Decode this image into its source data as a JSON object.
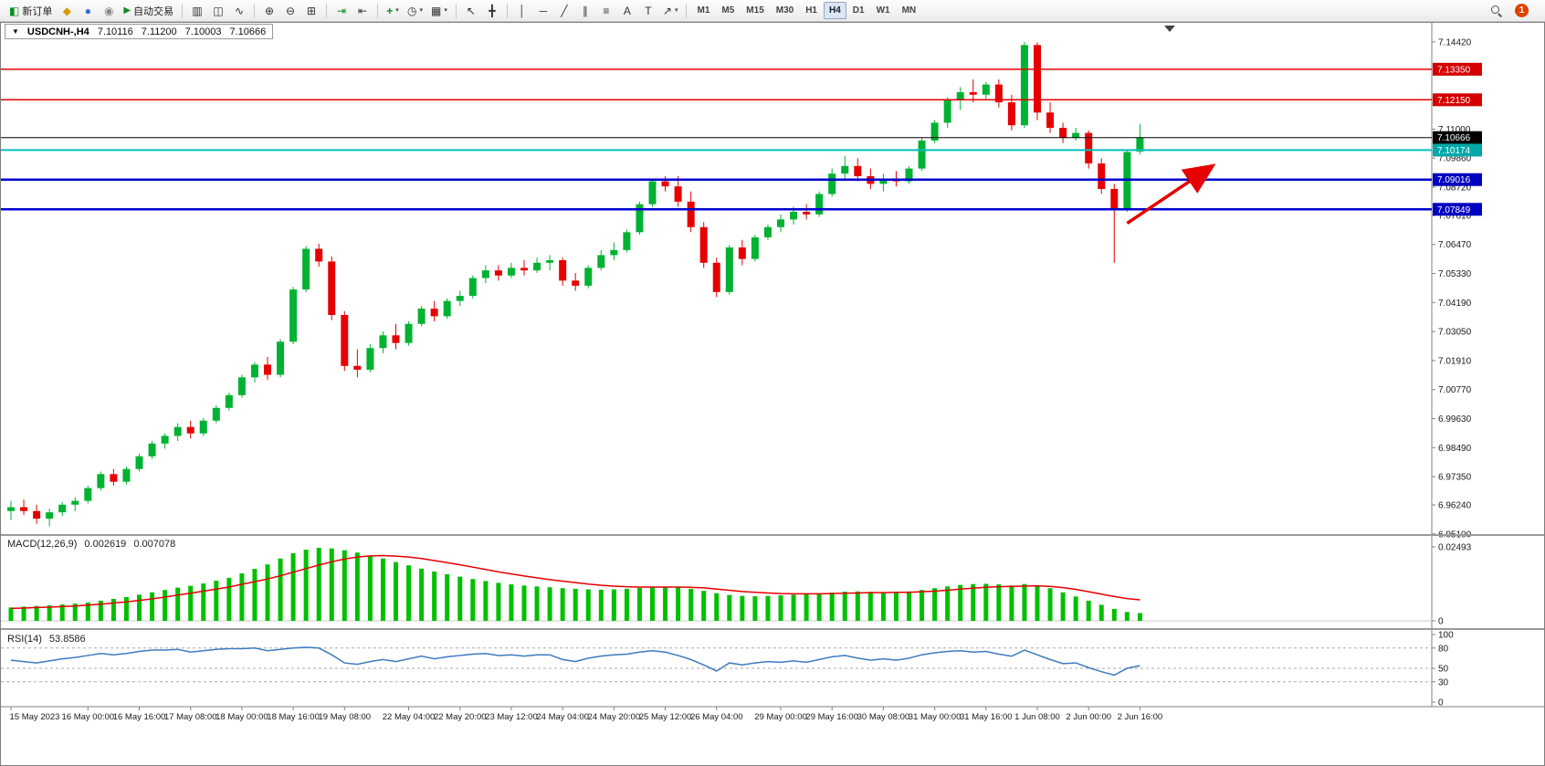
{
  "window": {
    "title_symbol": "USDCNH-,H4",
    "ohlc": {
      "open": "7.10116",
      "high": "7.11200",
      "low": "7.10003",
      "close": "7.10666"
    }
  },
  "toolbar": {
    "new_order": "新订单",
    "auto_trading": "自动交易",
    "notification_count": "1",
    "timeframes": [
      "M1",
      "M5",
      "M15",
      "M30",
      "H1",
      "H4",
      "D1",
      "W1",
      "MN"
    ],
    "active_timeframe": "H4",
    "icons": {
      "new_order": "◧",
      "metaeditor": "◆",
      "community": "●",
      "support": "◉",
      "play": "▶",
      "bars": "▥",
      "candles": "◫",
      "line": "∿",
      "zoom_in": "⊕",
      "zoom_out": "⊖",
      "tile": "⊞",
      "autoscroll": "⇥",
      "shift": "⇤",
      "indicators": "+",
      "periods": "◷",
      "templates": "▦",
      "cursor": "↖",
      "crosshair": "╋",
      "vline": "│",
      "hline": "─",
      "trend": "╱",
      "channel": "∥",
      "fibo": "≡",
      "text": "A",
      "label": "T",
      "arrow": "↗",
      "caret": "▾",
      "one_click": "▼"
    }
  },
  "indicators": {
    "macd": {
      "label": "MACD(12,26,9)",
      "value_main": "0.002619",
      "value_signal": "0.007078",
      "axis_max": "0.02493",
      "axis_zero": "0"
    },
    "rsi": {
      "label": "RSI(14)",
      "value": "53.8586"
    }
  },
  "chart_data": {
    "type": "candlestick",
    "symbol": "USDCNH-",
    "timeframe": "H4",
    "colors": {
      "up": "#00B232",
      "down": "#E60000",
      "macd_hist": "#00C000",
      "macd_signal": "#E60000",
      "rsi": "#3E7BC0",
      "arrow": "#E60000"
    },
    "price_axis_ticks": [
      "7.14420",
      "7.11000",
      "7.09860",
      "7.08720",
      "7.07610",
      "7.06470",
      "7.05330",
      "7.04190",
      "7.03050",
      "7.01910",
      "7.00770",
      "6.99630",
      "6.98490",
      "6.97350",
      "6.96240",
      "6.95100"
    ],
    "hlines": [
      {
        "price": 7.1335,
        "color": "#E60000",
        "width": 1.5,
        "label": "7.13350",
        "label_bg": "#D40000"
      },
      {
        "price": 7.1215,
        "color": "#E60000",
        "width": 1.5,
        "label": "7.12150",
        "label_bg": "#D40000"
      },
      {
        "price": 7.10666,
        "color": "#000000",
        "width": 1,
        "label": "7.10666",
        "label_bg": "#000000"
      },
      {
        "price": 7.10174,
        "color": "#00BFBF",
        "width": 2,
        "label": "7.10174",
        "label_bg": "#00A8A8"
      },
      {
        "price": 7.09016,
        "color": "#0000D0",
        "width": 2.5,
        "label": "7.09016",
        "label_bg": "#0000C0"
      },
      {
        "price": 7.07849,
        "color": "#0000D0",
        "width": 2.5,
        "label": "7.07849",
        "label_bg": "#0000C0"
      }
    ],
    "annotation_arrow": {
      "from_bar": 87,
      "from_price": 7.073,
      "to_bar": 93.5,
      "to_price": 7.095
    },
    "candles": [
      [
        6.96,
        6.964,
        6.9565,
        6.9615
      ],
      [
        6.9615,
        6.9645,
        6.9585,
        6.96
      ],
      [
        6.96,
        6.9625,
        6.955,
        6.957
      ],
      [
        6.957,
        6.961,
        6.954,
        6.9595
      ],
      [
        6.9595,
        6.9635,
        6.958,
        6.9625
      ],
      [
        6.9625,
        6.9655,
        6.96,
        6.964
      ],
      [
        6.964,
        6.97,
        6.963,
        6.969
      ],
      [
        6.969,
        6.9755,
        6.968,
        6.9745
      ],
      [
        6.9745,
        6.9765,
        6.97,
        6.9715
      ],
      [
        6.9715,
        6.9775,
        6.9705,
        6.9765
      ],
      [
        6.9765,
        6.9825,
        6.9755,
        6.9815
      ],
      [
        6.9815,
        6.9875,
        6.9805,
        6.9865
      ],
      [
        6.9865,
        6.9905,
        6.9845,
        6.9895
      ],
      [
        6.9895,
        6.9945,
        6.9875,
        6.993
      ],
      [
        6.993,
        6.9955,
        6.9885,
        6.9905
      ],
      [
        6.9905,
        6.9965,
        6.9895,
        6.9955
      ],
      [
        6.9955,
        7.0015,
        6.9945,
        7.0005
      ],
      [
        7.0005,
        7.0065,
        6.9995,
        7.0055
      ],
      [
        7.0055,
        7.0135,
        7.0045,
        7.0125
      ],
      [
        7.0125,
        7.0185,
        7.0105,
        7.0175
      ],
      [
        7.0175,
        7.0205,
        7.0115,
        7.0135
      ],
      [
        7.0135,
        7.0275,
        7.0125,
        7.0265
      ],
      [
        7.0265,
        7.048,
        7.0255,
        7.047
      ],
      [
        7.047,
        7.064,
        7.046,
        7.063
      ],
      [
        7.063,
        7.065,
        7.056,
        7.058
      ],
      [
        7.058,
        7.06,
        7.035,
        7.037
      ],
      [
        7.037,
        7.0385,
        7.015,
        7.017
      ],
      [
        7.017,
        7.0235,
        7.0125,
        7.0155
      ],
      [
        7.0155,
        7.0255,
        7.0145,
        7.024
      ],
      [
        7.024,
        7.0305,
        7.022,
        7.029
      ],
      [
        7.029,
        7.0335,
        7.0235,
        7.026
      ],
      [
        7.026,
        7.0345,
        7.025,
        7.0335
      ],
      [
        7.0335,
        7.0405,
        7.0325,
        7.0395
      ],
      [
        7.0395,
        7.0425,
        7.0345,
        7.0365
      ],
      [
        7.0365,
        7.0435,
        7.0355,
        7.0425
      ],
      [
        7.0425,
        7.0465,
        7.0405,
        7.0445
      ],
      [
        7.0445,
        7.0525,
        7.0435,
        7.0515
      ],
      [
        7.0515,
        7.0565,
        7.0495,
        7.0545
      ],
      [
        7.0545,
        7.0565,
        7.0505,
        7.0525
      ],
      [
        7.0525,
        7.0575,
        7.0515,
        7.0555
      ],
      [
        7.0555,
        7.0585,
        7.0525,
        7.0545
      ],
      [
        7.0545,
        7.0595,
        7.0535,
        7.0575
      ],
      [
        7.0575,
        7.0605,
        7.0545,
        7.0585
      ],
      [
        7.0585,
        7.0595,
        7.0485,
        7.0505
      ],
      [
        7.0505,
        7.0535,
        7.0465,
        7.0485
      ],
      [
        7.0485,
        7.0565,
        7.0475,
        7.0555
      ],
      [
        7.0555,
        7.0625,
        7.0545,
        7.0605
      ],
      [
        7.0605,
        7.0655,
        7.0585,
        7.0625
      ],
      [
        7.0625,
        7.0705,
        7.0615,
        7.0695
      ],
      [
        7.0695,
        7.0815,
        7.0685,
        7.0805
      ],
      [
        7.0805,
        7.0905,
        7.0795,
        7.0895
      ],
      [
        7.0895,
        7.0915,
        7.0855,
        7.0875
      ],
      [
        7.0875,
        7.0915,
        7.0795,
        7.0815
      ],
      [
        7.0815,
        7.0855,
        7.0695,
        7.0715
      ],
      [
        7.0715,
        7.0735,
        7.0555,
        7.0575
      ],
      [
        7.0575,
        7.0595,
        7.044,
        7.046
      ],
      [
        7.046,
        7.0645,
        7.045,
        7.0635
      ],
      [
        7.0635,
        7.0665,
        7.0565,
        7.059
      ],
      [
        7.059,
        7.0685,
        7.058,
        7.0675
      ],
      [
        7.0675,
        7.0725,
        7.0665,
        7.0715
      ],
      [
        7.0715,
        7.0765,
        7.0695,
        7.0745
      ],
      [
        7.0745,
        7.0795,
        7.0725,
        7.0775
      ],
      [
        7.0775,
        7.0805,
        7.0745,
        7.0765
      ],
      [
        7.0765,
        7.0855,
        7.0755,
        7.0845
      ],
      [
        7.0845,
        7.0945,
        7.0835,
        7.0925
      ],
      [
        7.0925,
        7.0995,
        7.0905,
        7.0955
      ],
      [
        7.0955,
        7.0985,
        7.0895,
        7.0915
      ],
      [
        7.0915,
        7.0945,
        7.0865,
        7.0885
      ],
      [
        7.0885,
        7.0925,
        7.0855,
        7.0905
      ],
      [
        7.0905,
        7.0935,
        7.0875,
        7.0895
      ],
      [
        7.0895,
        7.0955,
        7.0885,
        7.0945
      ],
      [
        7.0945,
        7.1065,
        7.0935,
        7.1055
      ],
      [
        7.1055,
        7.1135,
        7.1045,
        7.1125
      ],
      [
        7.1125,
        7.1225,
        7.1105,
        7.1215
      ],
      [
        7.1215,
        7.1265,
        7.1175,
        7.1245
      ],
      [
        7.1245,
        7.1295,
        7.1205,
        7.1235
      ],
      [
        7.1235,
        7.1285,
        7.1215,
        7.1275
      ],
      [
        7.1275,
        7.1295,
        7.1185,
        7.1205
      ],
      [
        7.1205,
        7.1235,
        7.1095,
        7.1115
      ],
      [
        7.1115,
        7.1442,
        7.1105,
        7.143
      ],
      [
        7.143,
        7.144,
        7.1135,
        7.1165
      ],
      [
        7.1165,
        7.1205,
        7.1085,
        7.1105
      ],
      [
        7.1105,
        7.1125,
        7.1045,
        7.1065
      ],
      [
        7.1065,
        7.1105,
        7.1055,
        7.1085
      ],
      [
        7.1085,
        7.1095,
        7.0945,
        7.0965
      ],
      [
        7.0965,
        7.0985,
        7.0845,
        7.0865
      ],
      [
        7.0865,
        7.0885,
        7.0575,
        7.0785
      ],
      [
        7.0785,
        7.1015,
        7.0775,
        7.101
      ],
      [
        7.10116,
        7.112,
        7.10003,
        7.10666
      ]
    ],
    "time_labels": [
      {
        "i": 0,
        "t": "15 May 2023"
      },
      {
        "i": 6,
        "t": "16 May 00:00"
      },
      {
        "i": 10,
        "t": "16 May 16:00"
      },
      {
        "i": 14,
        "t": "17 May 08:00"
      },
      {
        "i": 18,
        "t": "18 May 00:00"
      },
      {
        "i": 22,
        "t": "18 May 16:00"
      },
      {
        "i": 26,
        "t": "19 May 08:00"
      },
      {
        "i": 31,
        "t": "22 May 04:00"
      },
      {
        "i": 35,
        "t": "22 May 20:00"
      },
      {
        "i": 39,
        "t": "23 May 12:00"
      },
      {
        "i": 43,
        "t": "24 May 04:00"
      },
      {
        "i": 47,
        "t": "24 May 20:00"
      },
      {
        "i": 51,
        "t": "25 May 12:00"
      },
      {
        "i": 55,
        "t": "26 May 04:00"
      },
      {
        "i": 60,
        "t": "29 May 00:00"
      },
      {
        "i": 64,
        "t": "29 May 16:00"
      },
      {
        "i": 68,
        "t": "30 May 08:00"
      },
      {
        "i": 72,
        "t": "31 May 00:00"
      },
      {
        "i": 76,
        "t": "31 May 16:00"
      },
      {
        "i": 80,
        "t": "1 Jun 08:00"
      },
      {
        "i": 84,
        "t": "2 Jun 00:00"
      },
      {
        "i": 88,
        "t": "2 Jun 16:00"
      }
    ],
    "macd": {
      "scale_labels": [
        "0.02493",
        "0"
      ],
      "histogram": [
        0.0045,
        0.0048,
        0.005,
        0.0052,
        0.0055,
        0.0058,
        0.0062,
        0.0068,
        0.0074,
        0.008,
        0.0088,
        0.0096,
        0.0104,
        0.0112,
        0.0118,
        0.0126,
        0.0135,
        0.0145,
        0.016,
        0.0175,
        0.019,
        0.021,
        0.0228,
        0.024,
        0.0246,
        0.0244,
        0.0238,
        0.023,
        0.022,
        0.021,
        0.0198,
        0.0187,
        0.0176,
        0.0166,
        0.0157,
        0.0149,
        0.0141,
        0.0134,
        0.0128,
        0.0123,
        0.0119,
        0.0116,
        0.0113,
        0.011,
        0.0108,
        0.0106,
        0.0105,
        0.0106,
        0.0108,
        0.0111,
        0.0114,
        0.0115,
        0.0113,
        0.0108,
        0.0101,
        0.0093,
        0.0087,
        0.0084,
        0.0083,
        0.0084,
        0.0086,
        0.0088,
        0.009,
        0.0092,
        0.0095,
        0.0098,
        0.0099,
        0.0098,
        0.0097,
        0.0097,
        0.0099,
        0.0104,
        0.011,
        0.0116,
        0.0121,
        0.0124,
        0.0125,
        0.0123,
        0.0119,
        0.0124,
        0.012,
        0.011,
        0.0096,
        0.0082,
        0.0068,
        0.0054,
        0.004,
        0.003,
        0.002619
      ],
      "signal": [
        0.0042,
        0.0043,
        0.0045,
        0.0046,
        0.0048,
        0.005,
        0.0053,
        0.0056,
        0.006,
        0.0064,
        0.0069,
        0.0074,
        0.008,
        0.0087,
        0.0093,
        0.01,
        0.0107,
        0.0114,
        0.0123,
        0.0132,
        0.0141,
        0.0152,
        0.0164,
        0.0176,
        0.0188,
        0.0199,
        0.0208,
        0.0215,
        0.0219,
        0.022,
        0.0218,
        0.0215,
        0.021,
        0.0203,
        0.0196,
        0.0189,
        0.0181,
        0.0173,
        0.0165,
        0.0158,
        0.0151,
        0.0145,
        0.0139,
        0.0134,
        0.0129,
        0.0124,
        0.012,
        0.0117,
        0.0115,
        0.0114,
        0.0114,
        0.0114,
        0.0114,
        0.0113,
        0.0111,
        0.0107,
        0.0103,
        0.0099,
        0.0096,
        0.0094,
        0.0092,
        0.0091,
        0.0091,
        0.0091,
        0.0092,
        0.0093,
        0.0094,
        0.0095,
        0.0095,
        0.0096,
        0.0096,
        0.0098,
        0.01,
        0.0103,
        0.0107,
        0.011,
        0.0113,
        0.0115,
        0.0116,
        0.0117,
        0.0118,
        0.0116,
        0.0112,
        0.0106,
        0.0098,
        0.009,
        0.0082,
        0.0075,
        0.007078
      ]
    },
    "rsi": {
      "scale_labels": [
        "100",
        "80",
        "50",
        "30",
        "0"
      ],
      "dashed_levels": [
        80,
        50,
        30
      ],
      "values": [
        62,
        60,
        58,
        61,
        64,
        66,
        69,
        72,
        70,
        72,
        75,
        77,
        77,
        78,
        74,
        76,
        78,
        79,
        79,
        80,
        76,
        78,
        80,
        81,
        80,
        70,
        58,
        56,
        60,
        63,
        60,
        64,
        68,
        64,
        67,
        69,
        71,
        72,
        69,
        70,
        68,
        70,
        70,
        63,
        60,
        65,
        68,
        70,
        71,
        74,
        76,
        74,
        69,
        63,
        55,
        46,
        58,
        55,
        58,
        60,
        59,
        61,
        59,
        63,
        67,
        69,
        65,
        62,
        64,
        62,
        65,
        70,
        73,
        75,
        76,
        74,
        75,
        71,
        68,
        77,
        70,
        63,
        57,
        58,
        51,
        45,
        40,
        50,
        53.86
      ]
    }
  }
}
